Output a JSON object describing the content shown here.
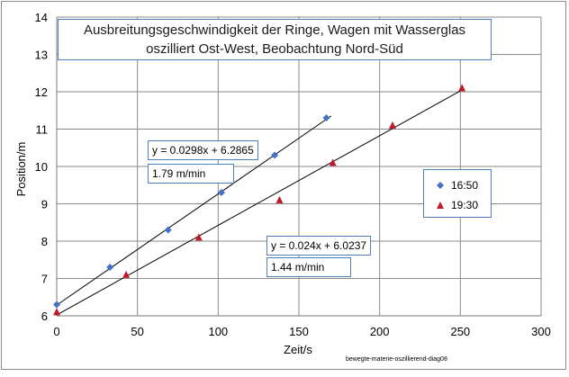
{
  "chart_data": {
    "type": "scatter",
    "title_lines": [
      "Ausbreitungsgeschwindigkeit der Ringe, Wagen mit Wasserglas",
      "oszilliert Ost-West, Beobachtung Nord-Süd"
    ],
    "xlabel": "Zeit/s",
    "ylabel": "Position/m",
    "xlim": [
      0,
      300
    ],
    "ylim": [
      6,
      14
    ],
    "xticks": [
      0,
      50,
      100,
      150,
      200,
      250,
      300
    ],
    "yticks": [
      6,
      7,
      8,
      9,
      10,
      11,
      12,
      13,
      14
    ],
    "grid": true,
    "legend_position": "right",
    "series": [
      {
        "name": "16:50",
        "marker": "diamond",
        "color": "#4472c4",
        "points": [
          [
            0,
            6.3
          ],
          [
            33,
            7.3
          ],
          [
            69,
            8.3
          ],
          [
            102,
            9.3
          ],
          [
            135,
            10.3
          ],
          [
            167,
            11.3
          ]
        ],
        "trendline": {
          "slope": 0.0298,
          "intercept": 6.2865,
          "x_range": [
            0,
            170
          ]
        },
        "equation": "y = 0.0298x + 6.2865",
        "speed": "1.79 m/min"
      },
      {
        "name": "19:30",
        "marker": "triangle",
        "color": "#c0182a",
        "points": [
          [
            0,
            6.1
          ],
          [
            43,
            7.1
          ],
          [
            88,
            8.1
          ],
          [
            138,
            9.1
          ],
          [
            171,
            10.1
          ],
          [
            208,
            11.1
          ],
          [
            251,
            12.1
          ]
        ],
        "trendline": {
          "slope": 0.024,
          "intercept": 6.0237,
          "x_range": [
            0,
            251
          ]
        },
        "equation": "y = 0.024x + 6.0237",
        "speed": "1.44 m/min"
      }
    ]
  },
  "caption": "bewegte-materie-oszillierend-diag08"
}
